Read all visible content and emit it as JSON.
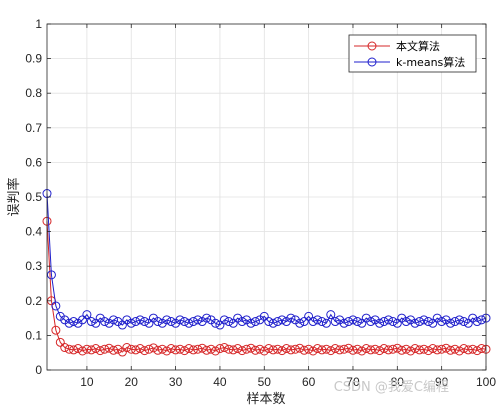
{
  "chart_data": {
    "type": "line",
    "xlabel": "样本数",
    "ylabel": "误判率",
    "xlim": [
      1,
      100
    ],
    "ylim": [
      0,
      1
    ],
    "xticks": [
      10,
      20,
      30,
      40,
      50,
      60,
      70,
      80,
      90,
      100
    ],
    "yticks": [
      0,
      0.1,
      0.2,
      0.3,
      0.4,
      0.5,
      0.6,
      0.7,
      0.8,
      0.9,
      1
    ],
    "grid": true,
    "legend_position": "top-right",
    "x": [
      1,
      2,
      3,
      4,
      5,
      6,
      7,
      8,
      9,
      10,
      11,
      12,
      13,
      14,
      15,
      16,
      17,
      18,
      19,
      20,
      21,
      22,
      23,
      24,
      25,
      26,
      27,
      28,
      29,
      30,
      31,
      32,
      33,
      34,
      35,
      36,
      37,
      38,
      39,
      40,
      41,
      42,
      43,
      44,
      45,
      46,
      47,
      48,
      49,
      50,
      51,
      52,
      53,
      54,
      55,
      56,
      57,
      58,
      59,
      60,
      61,
      62,
      63,
      64,
      65,
      66,
      67,
      68,
      69,
      70,
      71,
      72,
      73,
      74,
      75,
      76,
      77,
      78,
      79,
      80,
      81,
      82,
      83,
      84,
      85,
      86,
      87,
      88,
      89,
      90,
      91,
      92,
      93,
      94,
      95,
      96,
      97,
      98,
      99,
      100
    ],
    "series": [
      {
        "name": "本文算法",
        "color": "#d62728",
        "values": [
          0.43,
          0.2,
          0.115,
          0.08,
          0.065,
          0.06,
          0.058,
          0.062,
          0.055,
          0.06,
          0.058,
          0.062,
          0.056,
          0.06,
          0.063,
          0.057,
          0.06,
          0.052,
          0.065,
          0.06,
          0.058,
          0.062,
          0.056,
          0.06,
          0.064,
          0.057,
          0.06,
          0.055,
          0.062,
          0.058,
          0.06,
          0.056,
          0.062,
          0.058,
          0.06,
          0.063,
          0.057,
          0.06,
          0.055,
          0.062,
          0.065,
          0.06,
          0.058,
          0.062,
          0.056,
          0.06,
          0.063,
          0.057,
          0.06,
          0.055,
          0.062,
          0.058,
          0.06,
          0.056,
          0.062,
          0.058,
          0.06,
          0.063,
          0.057,
          0.06,
          0.055,
          0.062,
          0.058,
          0.06,
          0.056,
          0.062,
          0.058,
          0.06,
          0.063,
          0.057,
          0.06,
          0.055,
          0.062,
          0.058,
          0.06,
          0.056,
          0.062,
          0.058,
          0.06,
          0.063,
          0.057,
          0.06,
          0.055,
          0.062,
          0.058,
          0.06,
          0.056,
          0.062,
          0.058,
          0.06,
          0.063,
          0.057,
          0.06,
          0.055,
          0.062,
          0.058,
          0.06,
          0.056,
          0.062,
          0.06
        ]
      },
      {
        "name": "k-means算法",
        "color": "#1f1fcc",
        "values": [
          0.51,
          0.275,
          0.185,
          0.155,
          0.145,
          0.135,
          0.14,
          0.135,
          0.145,
          0.16,
          0.14,
          0.135,
          0.15,
          0.14,
          0.135,
          0.145,
          0.14,
          0.13,
          0.145,
          0.135,
          0.14,
          0.145,
          0.14,
          0.135,
          0.15,
          0.14,
          0.135,
          0.145,
          0.14,
          0.135,
          0.145,
          0.14,
          0.135,
          0.14,
          0.145,
          0.14,
          0.15,
          0.145,
          0.135,
          0.13,
          0.145,
          0.14,
          0.135,
          0.15,
          0.14,
          0.145,
          0.135,
          0.14,
          0.145,
          0.155,
          0.14,
          0.135,
          0.14,
          0.145,
          0.14,
          0.15,
          0.145,
          0.135,
          0.14,
          0.155,
          0.14,
          0.145,
          0.14,
          0.135,
          0.16,
          0.14,
          0.145,
          0.135,
          0.14,
          0.145,
          0.14,
          0.135,
          0.15,
          0.14,
          0.145,
          0.135,
          0.14,
          0.145,
          0.14,
          0.135,
          0.15,
          0.14,
          0.145,
          0.135,
          0.14,
          0.145,
          0.14,
          0.135,
          0.15,
          0.14,
          0.145,
          0.135,
          0.14,
          0.145,
          0.14,
          0.135,
          0.15,
          0.14,
          0.145,
          0.15
        ]
      }
    ]
  },
  "watermark": "CSDN @我爱C编程"
}
